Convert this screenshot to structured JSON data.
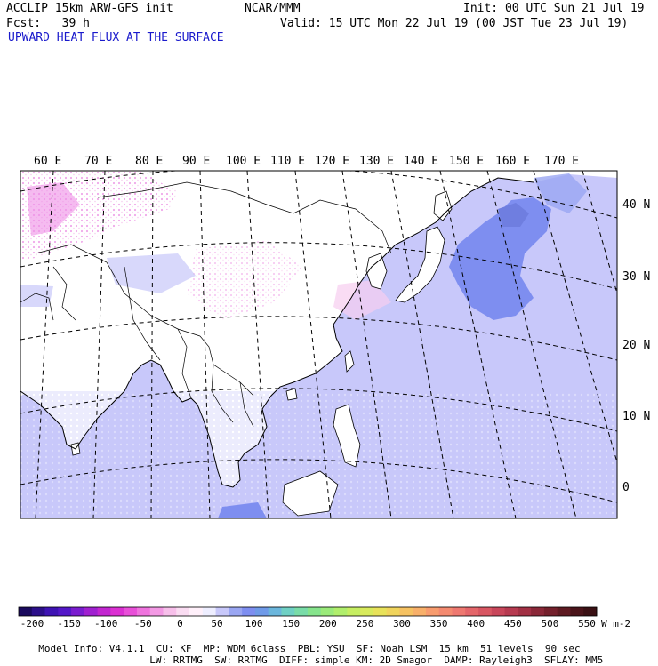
{
  "header": {
    "model": "ACCLIP 15km ARW-GFS init",
    "center": "NCAR/MMM",
    "init": "Init: 00 UTC Sun 21 Jul 19",
    "fcst": "Fcst:   39 h",
    "valid": "Valid: 15 UTC Mon 22 Jul 19 (00 JST Tue 23 Jul 19)",
    "field": "UPWARD HEAT FLUX AT THE SURFACE"
  },
  "map": {
    "lon_labels": [
      "60 E",
      "70 E",
      "80 E",
      "90 E",
      "100 E",
      "110 E",
      "120 E",
      "130 E",
      "140 E",
      "150 E",
      "160 E",
      "170 E"
    ],
    "lat_labels": [
      "40 N",
      "30 N",
      "20 N",
      "10 N",
      "0"
    ],
    "colors": {
      "land_white": "#ffffff",
      "ocean_lavender": "#c8c8fa",
      "ocean_blue": "#7e8ef0",
      "pink_light": "#f7cdf0",
      "pink_strong": "#e65ee0",
      "coast": "#000000",
      "grid": "#000000"
    }
  },
  "colorbar": {
    "ticks": [
      "-200",
      "-150",
      "-100",
      "-50",
      "0",
      "50",
      "100",
      "150",
      "200",
      "250",
      "300",
      "350",
      "400",
      "450",
      "500",
      "550"
    ],
    "units": "W m-2",
    "colors": [
      "#1a0a5e",
      "#2c0f8a",
      "#3e13b3",
      "#5417c8",
      "#7a1ccf",
      "#a020d0",
      "#c226d0",
      "#db30d2",
      "#e84fd8",
      "#ef73de",
      "#f399e4",
      "#f7bfea",
      "#fadcf2",
      "#fff0fa",
      "#eeeeff",
      "#c8c8fa",
      "#9aa6f2",
      "#7e8ef0",
      "#6f9ae8",
      "#6bb6dc",
      "#6fd0c4",
      "#79dca8",
      "#86e48c",
      "#9aea7a",
      "#b0ee6c",
      "#c6ee62",
      "#d8ea5c",
      "#e8e25a",
      "#f0d45c",
      "#f6c262",
      "#f8b06a",
      "#f89c6e",
      "#f48a70",
      "#ee7870",
      "#e4666a",
      "#d85662",
      "#c8465a",
      "#b63a50",
      "#a23044",
      "#8a2838",
      "#74202c",
      "#5e1a22",
      "#4a141a",
      "#3a1014"
    ]
  },
  "footer": {
    "line1": [
      "Model Info: V4.1.1",
      "CU: KF",
      "MP: WDM 6class",
      "PBL: YSU",
      "SF: Noah LSM",
      "15 km",
      "51 levels",
      "90 sec"
    ],
    "line2": [
      "LW: RRTMG",
      "SW: RRTMG",
      "DIFF: simple",
      "KM: 2D Smagor",
      "DAMP: Rayleigh3",
      "SFLAY: MM5"
    ]
  }
}
